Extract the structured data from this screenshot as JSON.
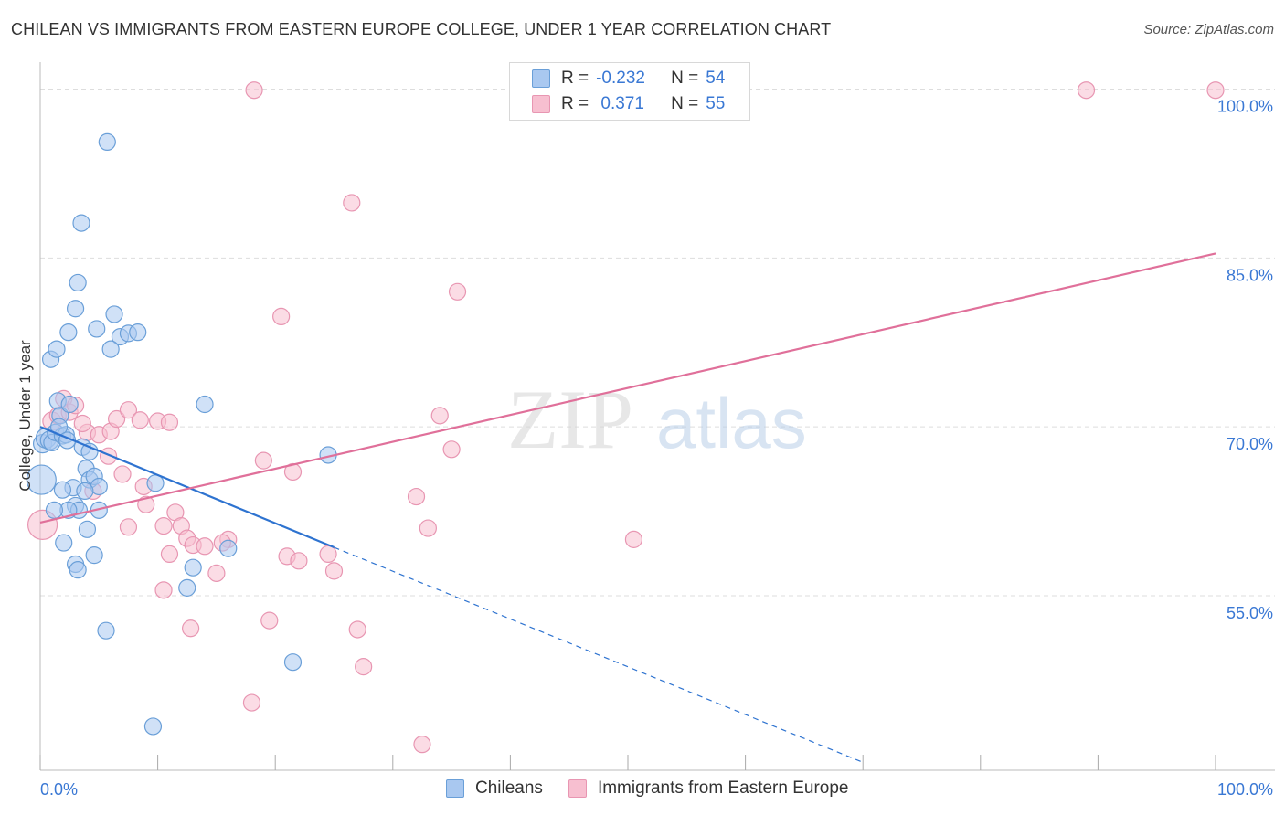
{
  "title": "CHILEAN VS IMMIGRANTS FROM EASTERN EUROPE COLLEGE, UNDER 1 YEAR CORRELATION CHART",
  "source": "Source: ZipAtlas.com",
  "watermark": {
    "part1": "ZIP",
    "part2": "atlas"
  },
  "colors": {
    "blue_fill": "#a9c8f0",
    "blue_stroke": "#6a9fd8",
    "blue_line": "#2e73d0",
    "pink_fill": "#f7bfd0",
    "pink_stroke": "#e896b2",
    "pink_line": "#e0709a",
    "tick_text": "#3a78d4",
    "grid": "#dddddd"
  },
  "legend": {
    "rows": [
      {
        "r_label": "R =",
        "r_value": "-0.232",
        "n_label": "N =",
        "n_value": "54",
        "color": "#a9c8f0",
        "border": "#6a9fd8"
      },
      {
        "r_label": "R =",
        "r_value": " 0.371",
        "n_label": "N =",
        "n_value": "55",
        "color": "#f7bfd0",
        "border": "#e896b2"
      }
    ],
    "bottom": [
      {
        "label": "Chileans",
        "color": "#a9c8f0",
        "border": "#6a9fd8"
      },
      {
        "label": "Immigrants from Eastern Europe",
        "color": "#f7bfd0",
        "border": "#e896b2"
      }
    ]
  },
  "chart_data": {
    "type": "scatter",
    "xlabel": "",
    "ylabel": "College, Under 1 year",
    "xlim": [
      0,
      100
    ],
    "ylim": [
      39.5,
      101.5
    ],
    "x_tick_labels": [
      {
        "value": 0,
        "label": "0.0%"
      },
      {
        "value": 100,
        "label": "100.0%"
      }
    ],
    "y_tick_labels": [
      {
        "value": 55,
        "label": "55.0%"
      },
      {
        "value": 70,
        "label": "70.0%"
      },
      {
        "value": 85,
        "label": "85.0%"
      },
      {
        "value": 100,
        "label": "100.0%"
      }
    ],
    "y_gridlines": [
      55,
      70,
      85,
      100
    ],
    "x_minor_ticks": [
      0,
      10,
      20,
      30,
      40,
      50,
      60,
      70,
      80,
      90,
      100
    ],
    "series": [
      {
        "name": "Chileans",
        "color": "#a9c8f0",
        "r": -0.232,
        "n": 54,
        "trend": {
          "x0": 0,
          "y0": 70.0,
          "x1": 25.0,
          "y1": 59.3,
          "dash_to_x": 70.0,
          "dash_to_y": 40.2
        },
        "points": [
          [
            0.1,
            65.3,
            16
          ],
          [
            0.2,
            68.5,
            10
          ],
          [
            0.5,
            69.0,
            11
          ],
          [
            0.8,
            68.8,
            10
          ],
          [
            1.0,
            68.6,
            9
          ],
          [
            1.3,
            69.5,
            9
          ],
          [
            1.5,
            72.3,
            9
          ],
          [
            1.7,
            71.0,
            9
          ],
          [
            1.9,
            69.2,
            9
          ],
          [
            2.2,
            69.3,
            9
          ],
          [
            2.5,
            72.0,
            9
          ],
          [
            2.8,
            64.6,
            9
          ],
          [
            3.0,
            63.0,
            9
          ],
          [
            3.3,
            62.6,
            9
          ],
          [
            3.6,
            68.2,
            9
          ],
          [
            3.9,
            66.3,
            9
          ],
          [
            4.2,
            65.3,
            9
          ],
          [
            4.6,
            65.6,
            9
          ],
          [
            5.0,
            64.7,
            9
          ],
          [
            2.4,
            62.6,
            9
          ],
          [
            1.9,
            64.4,
            9
          ],
          [
            1.2,
            62.6,
            9
          ],
          [
            0.9,
            76.0,
            9
          ],
          [
            1.4,
            76.9,
            9
          ],
          [
            2.4,
            78.4,
            9
          ],
          [
            3.0,
            80.5,
            9
          ],
          [
            3.2,
            82.8,
            9
          ],
          [
            3.5,
            88.1,
            9
          ],
          [
            5.7,
            95.3,
            9
          ],
          [
            4.8,
            78.7,
            9
          ],
          [
            6.3,
            80.0,
            9
          ],
          [
            6.8,
            78.0,
            9
          ],
          [
            7.5,
            78.3,
            9
          ],
          [
            8.3,
            78.4,
            9
          ],
          [
            6.0,
            76.9,
            9
          ],
          [
            9.8,
            65.0,
            9
          ],
          [
            14.0,
            72.0,
            9
          ],
          [
            16.0,
            59.2,
            9
          ],
          [
            13.0,
            57.5,
            9
          ],
          [
            12.5,
            55.7,
            9
          ],
          [
            4.0,
            60.9,
            9
          ],
          [
            2.0,
            59.7,
            9
          ],
          [
            3.0,
            57.8,
            9
          ],
          [
            3.2,
            57.3,
            9
          ],
          [
            4.6,
            58.6,
            9
          ],
          [
            5.6,
            51.9,
            9
          ],
          [
            9.6,
            43.4,
            9
          ],
          [
            21.5,
            49.1,
            9
          ],
          [
            24.5,
            67.5,
            9
          ],
          [
            1.6,
            70.0,
            9
          ],
          [
            2.3,
            68.8,
            9
          ],
          [
            5.0,
            62.6,
            9
          ],
          [
            4.2,
            67.8,
            9
          ],
          [
            3.8,
            64.3,
            9
          ]
        ]
      },
      {
        "name": "Immigrants from Eastern Europe",
        "color": "#f7bfd0",
        "r": 0.371,
        "n": 55,
        "trend": {
          "x0": 0,
          "y0": 61.5,
          "x1": 100,
          "y1": 85.4
        },
        "points": [
          [
            0.2,
            61.3,
            16
          ],
          [
            1.0,
            70.5,
            10
          ],
          [
            1.5,
            71.0,
            9
          ],
          [
            2.0,
            72.5,
            9
          ],
          [
            2.5,
            71.3,
            9
          ],
          [
            3.0,
            71.9,
            9
          ],
          [
            4.0,
            69.5,
            9
          ],
          [
            5.0,
            69.3,
            9
          ],
          [
            6.0,
            69.6,
            9
          ],
          [
            6.5,
            70.7,
            9
          ],
          [
            7.5,
            71.5,
            9
          ],
          [
            8.5,
            70.6,
            9
          ],
          [
            10.0,
            70.5,
            9
          ],
          [
            11.0,
            70.4,
            9
          ],
          [
            5.8,
            67.4,
            9
          ],
          [
            7.0,
            65.8,
            9
          ],
          [
            4.5,
            64.3,
            9
          ],
          [
            7.5,
            61.1,
            9
          ],
          [
            9.0,
            63.1,
            9
          ],
          [
            10.5,
            61.2,
            9
          ],
          [
            11.5,
            62.4,
            9
          ],
          [
            12.0,
            61.2,
            9
          ],
          [
            12.5,
            60.1,
            9
          ],
          [
            13.0,
            59.5,
            9
          ],
          [
            14.0,
            59.4,
            9
          ],
          [
            16.0,
            60.0,
            9
          ],
          [
            15.5,
            59.7,
            9
          ],
          [
            11.0,
            58.7,
            9
          ],
          [
            10.5,
            55.5,
            9
          ],
          [
            15.0,
            57.0,
            9
          ],
          [
            12.8,
            52.1,
            9
          ],
          [
            19.5,
            52.8,
            9
          ],
          [
            21.0,
            58.5,
            9
          ],
          [
            22.0,
            58.1,
            9
          ],
          [
            24.5,
            58.7,
            9
          ],
          [
            25.0,
            57.2,
            9
          ],
          [
            19.0,
            67.0,
            9
          ],
          [
            21.5,
            66.0,
            9
          ],
          [
            20.5,
            79.8,
            9
          ],
          [
            26.5,
            89.9,
            9
          ],
          [
            35.5,
            82.0,
            9
          ],
          [
            34.0,
            71.0,
            9
          ],
          [
            35.0,
            68.0,
            9
          ],
          [
            32.0,
            63.8,
            9
          ],
          [
            33.0,
            61.0,
            9
          ],
          [
            18.0,
            45.5,
            9
          ],
          [
            27.0,
            52.0,
            9
          ],
          [
            27.5,
            48.7,
            9
          ],
          [
            32.5,
            41.8,
            9
          ],
          [
            50.5,
            60.0,
            9
          ],
          [
            18.2,
            99.9,
            9
          ],
          [
            89.0,
            99.9,
            9
          ],
          [
            100.0,
            99.9,
            9
          ],
          [
            8.8,
            64.7,
            9
          ],
          [
            3.6,
            70.3,
            9
          ]
        ]
      }
    ]
  }
}
